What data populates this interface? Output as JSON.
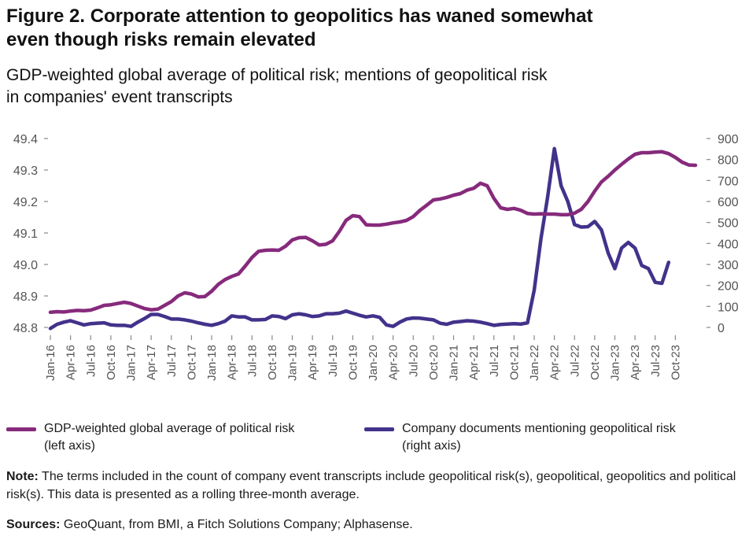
{
  "title_line1": "Figure 2. Corporate attention to geopolitics has waned somewhat",
  "title_line2": "even though risks remain elevated",
  "subtitle_line1": "GDP-weighted global average of political risk; mentions of geopolitical risk",
  "subtitle_line2": "in companies' event transcripts",
  "legend": {
    "left_line1": "GDP-weighted global average of political risk",
    "left_line2": "(left axis)",
    "right_line1": "Company documents mentioning geopolitical risk",
    "right_line2": "(right axis)"
  },
  "note_label": "Note:",
  "note_text": "The terms included in the count of company event transcripts include geopolitical risk(s), geopolitical, geopolitics and political risk(s). This data is presented as a rolling three-month average.",
  "sources_label": "Sources:",
  "sources_text": "GeoQuant, from BMI, a Fitch Solutions Company; Alphasense.",
  "colors": {
    "political_risk": "#862a7c",
    "company_docs": "#43328b",
    "axis": "#888888",
    "text": "#555555"
  },
  "chart_data": {
    "type": "line",
    "title": "Figure 2. Corporate attention to geopolitics has waned somewhat even though risks remain elevated",
    "x_start": "Jan-16",
    "x_tick_labels": [
      "Jan-16",
      "Apr-16",
      "Jul-16",
      "Oct-16",
      "Jan-17",
      "Apr-17",
      "Jul-17",
      "Oct-17",
      "Jan-18",
      "Apr-18",
      "Jul-18",
      "Oct-18",
      "Jan-19",
      "Apr-19",
      "Jul-19",
      "Oct-19",
      "Jan-20",
      "Apr-20",
      "Jul-20",
      "Oct-20",
      "Jan-21",
      "Apr-21",
      "Jul-21",
      "Oct-21",
      "Jan-22",
      "Apr-22",
      "Jul-22",
      "Oct-22",
      "Jan-23",
      "Apr-23",
      "Jul-23",
      "Oct-23"
    ],
    "left_axis": {
      "label": "",
      "ylim": [
        48.8,
        49.4
      ],
      "ticks": [
        "49.4",
        "49.3",
        "49.2",
        "49.1",
        "49.0",
        "48.9",
        "48.8"
      ]
    },
    "right_axis": {
      "label": "",
      "ylim": [
        0,
        900
      ],
      "ticks": [
        "900",
        "800",
        "700",
        "600",
        "500",
        "400",
        "300",
        "200",
        "100",
        "0"
      ]
    },
    "series": [
      {
        "name": "GDP-weighted global average of political risk",
        "axis": "left",
        "values": [
          48.848,
          48.85,
          48.849,
          48.852,
          48.854,
          48.853,
          48.855,
          48.862,
          48.87,
          48.872,
          48.876,
          48.88,
          48.876,
          48.868,
          48.86,
          48.856,
          48.858,
          48.87,
          48.882,
          48.9,
          48.91,
          48.906,
          48.897,
          48.898,
          48.915,
          48.937,
          48.952,
          48.962,
          48.97,
          48.995,
          49.022,
          49.042,
          49.045,
          49.046,
          49.045,
          49.058,
          49.078,
          49.085,
          49.086,
          49.075,
          49.062,
          49.064,
          49.075,
          49.105,
          49.14,
          49.155,
          49.152,
          49.126,
          49.125,
          49.125,
          49.128,
          49.132,
          49.135,
          49.14,
          49.152,
          49.172,
          49.188,
          49.205,
          49.208,
          49.213,
          49.22,
          49.225,
          49.236,
          49.242,
          49.258,
          49.25,
          49.21,
          49.18,
          49.175,
          49.178,
          49.172,
          49.162,
          49.16,
          49.161,
          49.16,
          49.16,
          49.158,
          49.158,
          49.163,
          49.175,
          49.2,
          49.233,
          49.262,
          49.28,
          49.3,
          49.318,
          49.335,
          49.35,
          49.355,
          49.355,
          49.357,
          49.358,
          49.352,
          49.34,
          49.325,
          49.316,
          49.315
        ]
      },
      {
        "name": "Company documents mentioning geopolitical risk",
        "axis": "right",
        "values": [
          -5,
          15,
          25,
          32,
          22,
          12,
          18,
          20,
          22,
          12,
          10,
          10,
          5,
          25,
          42,
          62,
          62,
          52,
          40,
          40,
          36,
          30,
          22,
          15,
          10,
          18,
          30,
          55,
          50,
          50,
          36,
          36,
          38,
          55,
          52,
          42,
          60,
          65,
          60,
          52,
          55,
          65,
          65,
          68,
          78,
          68,
          58,
          50,
          55,
          48,
          12,
          5,
          25,
          40,
          45,
          44,
          40,
          36,
          20,
          15,
          25,
          28,
          32,
          30,
          25,
          18,
          10,
          14,
          16,
          18,
          16,
          22,
          178,
          422,
          622,
          852,
          675,
          600,
          490,
          478,
          480,
          505,
          465,
          355,
          280,
          378,
          405,
          378,
          295,
          280,
          215,
          210,
          310
        ]
      }
    ]
  }
}
